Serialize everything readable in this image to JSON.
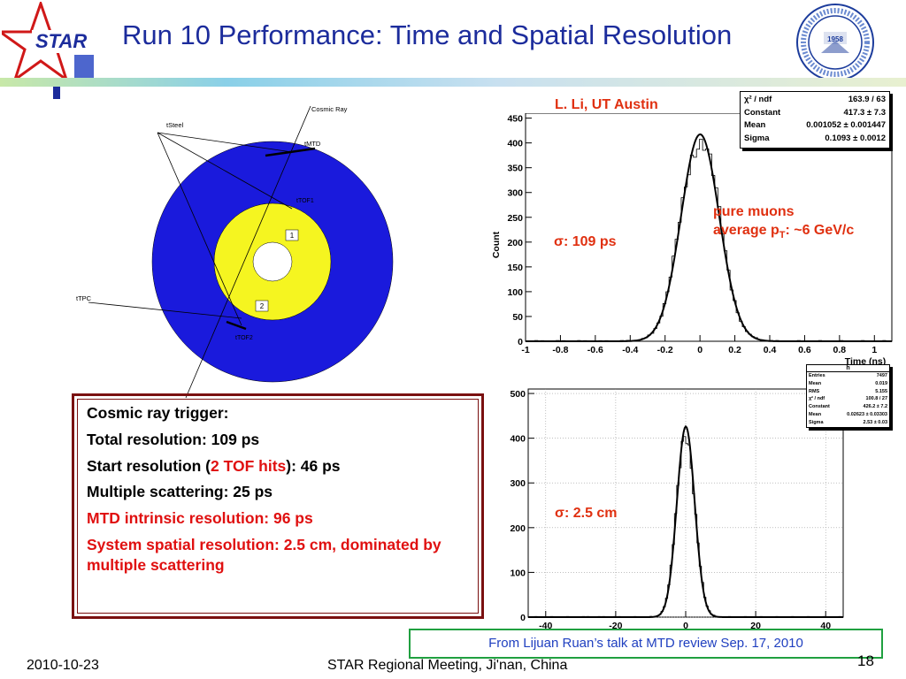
{
  "header": {
    "title": "Run 10 Performance: Time and Spatial Resolution",
    "logo_left": "STAR",
    "logo_right_year": "1958"
  },
  "diagram": {
    "labels": {
      "cosmic_ray": "Cosmic Ray",
      "tsteel": "tSteel",
      "tmtd": "tMTD",
      "ttof1": "tTOF1",
      "ttpc": "tTPC",
      "ttof2": "tTOF2",
      "region1": "1",
      "region2": "2"
    },
    "colors": {
      "outer": "#1a1adc",
      "inner": "#f5f520",
      "core": "#ffffff"
    }
  },
  "credit": "L. Li, UT Austin",
  "stats_time": {
    "rows": [
      {
        "label": "χ² / ndf",
        "value": "163.9 / 63"
      },
      {
        "label": "Constant",
        "value": "417.3 ± 7.3"
      },
      {
        "label": "Mean",
        "value": "0.001052 ± 0.001447"
      },
      {
        "label": "Sigma",
        "value": "0.1093 ± 0.0012"
      }
    ]
  },
  "stats_spatial": {
    "header": "h",
    "rows": [
      {
        "label": "Entries",
        "value": "7497"
      },
      {
        "label": "Mean",
        "value": "0.019"
      },
      {
        "label": "RMS",
        "value": "5.155"
      },
      {
        "label": "χ² / ndf",
        "value": "100.8 / 27"
      },
      {
        "label": "Constant",
        "value": "426.2 ± 7.2"
      },
      {
        "label": "Mean",
        "value": "0.02623 ± 0.03303"
      },
      {
        "label": "Sigma",
        "value": "2.53 ± 0.03"
      }
    ]
  },
  "annotations": {
    "sigma_time": "σ: 109 ps",
    "sigma_spatial": "σ: 2.5 cm",
    "muons_line1": "pure muons",
    "muons_line2_prefix": "average p",
    "muons_line2_sub": "T",
    "muons_line2_suffix": ": ~6 GeV/c"
  },
  "infobox": {
    "line1": "Cosmic ray trigger:",
    "line2": "Total resolution: 109 ps",
    "line3_prefix": "Start resolution (",
    "line3_highlight": "2 TOF hits",
    "line3_suffix": "): 46 ps",
    "line4": "Multiple scattering: 25 ps",
    "line5": "MTD intrinsic resolution: 96 ps",
    "line6": "System spatial resolution: 2.5 cm, dominated by multiple scattering"
  },
  "source_note": "From Lijuan Ruan’s talk at MTD review Sep. 17, 2010",
  "footer": {
    "date": "2010-10-23",
    "meeting": "STAR Regional Meeting, Ji'nan, China",
    "page": "18"
  },
  "chart_data": [
    {
      "type": "histogram",
      "xlabel": "Time (ns)",
      "ylabel": "Count",
      "xlim": [
        -1,
        1.1
      ],
      "ylim": [
        0,
        460
      ],
      "xticks": [
        -1,
        -0.8,
        -0.6,
        -0.4,
        -0.2,
        0,
        0.2,
        0.4,
        0.6,
        0.8,
        1
      ],
      "yticks": [
        0,
        50,
        100,
        150,
        200,
        250,
        300,
        350,
        400,
        450
      ],
      "fit": {
        "function": "gaussian",
        "constant": 417.3,
        "mean": 0.001052,
        "sigma": 0.1093
      },
      "grid": false
    },
    {
      "type": "histogram",
      "xlabel": "",
      "ylabel": "",
      "xlim": [
        -45,
        45
      ],
      "ylim": [
        0,
        510
      ],
      "xticks": [
        -40,
        -20,
        0,
        20,
        40
      ],
      "yticks": [
        0,
        100,
        200,
        300,
        400,
        500
      ],
      "fit": {
        "function": "gaussian",
        "constant": 426.2,
        "mean": 0.02623,
        "sigma": 2.53
      },
      "grid": true
    }
  ]
}
